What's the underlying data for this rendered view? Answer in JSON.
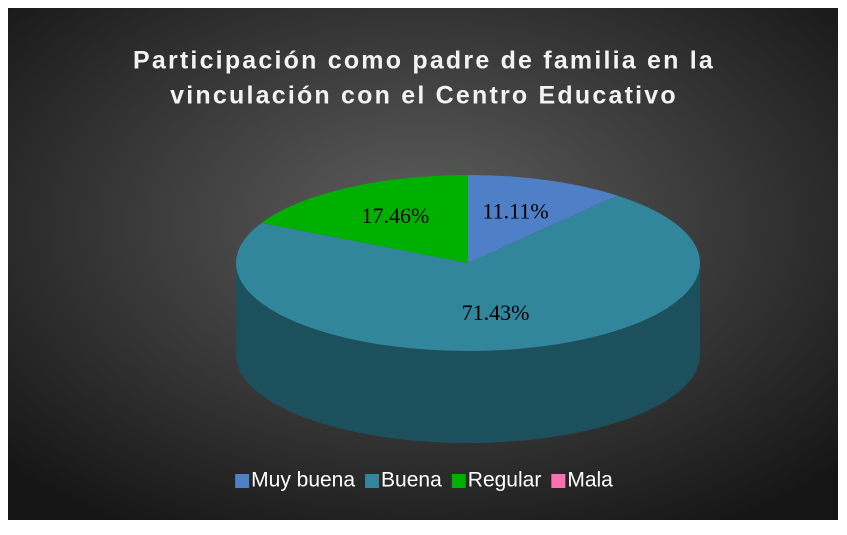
{
  "chart_data": {
    "type": "pie",
    "title": [
      "Participación como padre de familia en la",
      "vinculación con el Centro Educativo"
    ],
    "categories": [
      "Muy buena",
      "Buena",
      "Regular",
      "Mala"
    ],
    "values": [
      11.11,
      71.43,
      17.46,
      0
    ],
    "value_labels": [
      "11.11%",
      "71.43%",
      "17.46%",
      null
    ],
    "colors": [
      "#4f7fc6",
      "#31869b",
      "#00b000",
      "#ff6fae"
    ],
    "legend": "bottom"
  }
}
